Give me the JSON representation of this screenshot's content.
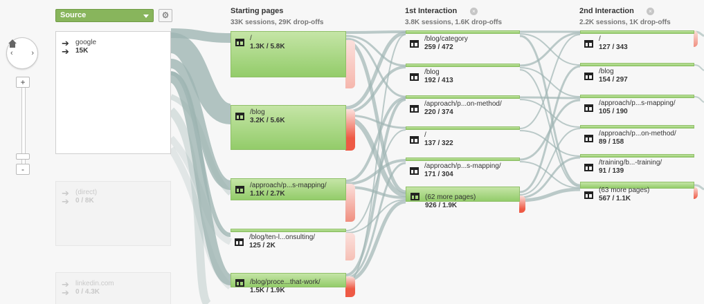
{
  "header": {
    "dimension_select": "Source",
    "gear_icon": "gear-icon"
  },
  "columns": [
    {
      "title": "Starting pages",
      "subtitle": "33K sessions, 29K drop-offs",
      "closable": false
    },
    {
      "title": "1st Interaction",
      "subtitle": "3.8K sessions, 1.6K drop-offs",
      "closable": true
    },
    {
      "title": "2nd Interaction",
      "subtitle": "2.2K sessions, 1K drop-offs",
      "closable": true
    }
  ],
  "sources": [
    {
      "name": "google",
      "count": "15K",
      "faded": false
    },
    {
      "name": "(direct)",
      "count": "0 / 8K",
      "faded": true
    },
    {
      "name": "linkedin.com",
      "count": "0 / 4.3K",
      "faded": true
    }
  ],
  "starting_pages": [
    {
      "label": "/",
      "stats": "1.3K / 5.8K"
    },
    {
      "label": "/blog",
      "stats": "3.2K / 5.6K"
    },
    {
      "label": "/approach/p...s-mapping/",
      "stats": "1.1K / 2.7K"
    },
    {
      "label": "/blog/ten-l...onsulting/",
      "stats": "125 / 2K"
    },
    {
      "label": "/blog/proce...that-work/",
      "stats": "1.5K / 1.9K"
    }
  ],
  "first_interaction": [
    {
      "label": "/blog/category",
      "stats": "259 / 472"
    },
    {
      "label": "/blog",
      "stats": "192 / 413"
    },
    {
      "label": "/approach/p...on-method/",
      "stats": "220 / 374"
    },
    {
      "label": "/",
      "stats": "137 / 322"
    },
    {
      "label": "/approach/p...s-mapping/",
      "stats": "171 / 304"
    },
    {
      "label": "(62 more pages)",
      "stats": "926 / 1.9K"
    }
  ],
  "second_interaction": [
    {
      "label": "/",
      "stats": "127 / 343"
    },
    {
      "label": "/blog",
      "stats": "154 / 297"
    },
    {
      "label": "/approach/p...s-mapping/",
      "stats": "105 / 190"
    },
    {
      "label": "/approach/p...on-method/",
      "stats": "89 / 158"
    },
    {
      "label": "/training/b...-training/",
      "stats": "91 / 139"
    },
    {
      "label": "(63 more pages)",
      "stats": "567 / 1.1K"
    }
  ],
  "colors": {
    "node_green": "#93cc6a",
    "flow_gray": "#9fb5b3",
    "dropoff_red": "#ee5a45",
    "source_button": "#88b55c"
  }
}
